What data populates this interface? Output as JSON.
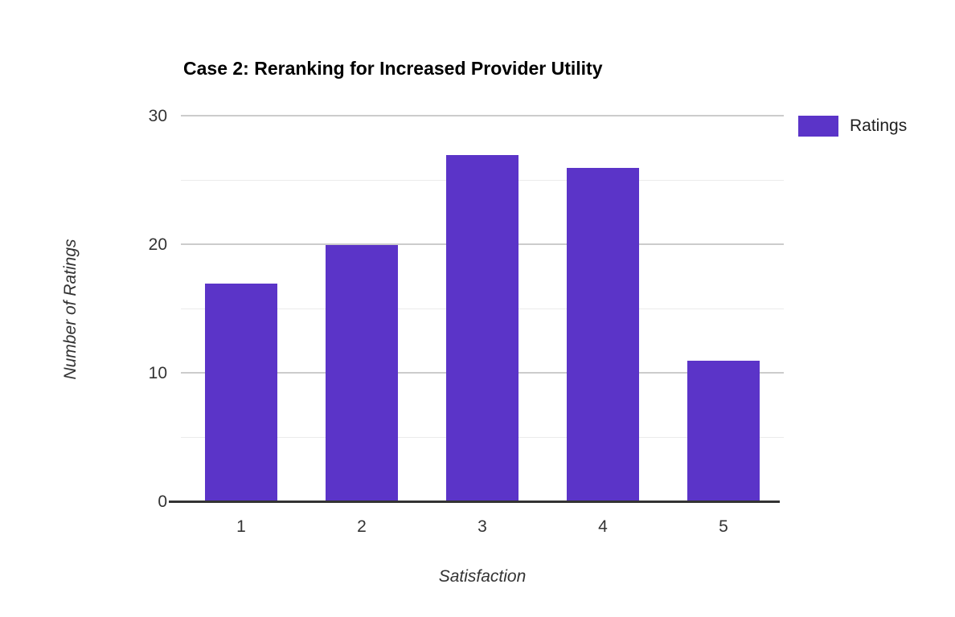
{
  "chart_data": {
    "type": "bar",
    "title": "Case 2: Reranking for Increased Provider Utility",
    "categories": [
      "1",
      "2",
      "3",
      "4",
      "5"
    ],
    "series": [
      {
        "name": "Ratings",
        "values": [
          17,
          20,
          27,
          26,
          11
        ],
        "color": "#5B34C8"
      }
    ],
    "xlabel": "Satisfaction",
    "ylabel": "Number of Ratings",
    "ylim": [
      0,
      30
    ],
    "yticks": [
      0,
      10,
      20,
      30
    ],
    "minor_gridlines": [
      5,
      15,
      25
    ],
    "grid": true,
    "legend_position": "right"
  },
  "colors": {
    "bar": "#5B34C8",
    "major_gridline": "#cccccc",
    "minor_gridline": "#ebebeb",
    "axis_line": "#333333",
    "tick_text": "#333333",
    "background": "#ffffff"
  }
}
